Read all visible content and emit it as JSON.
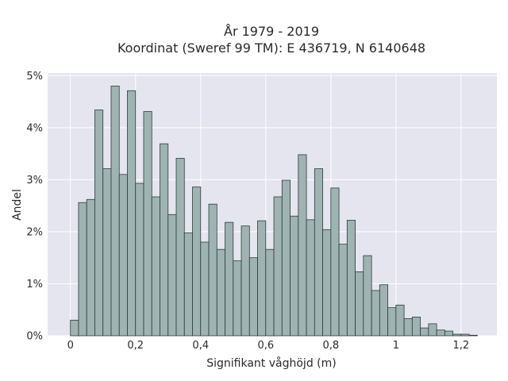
{
  "chart_data": {
    "type": "bar",
    "title_line1": "År 1979 - 2019",
    "title_line2": "Koordinat (Sweref 99 TM): E 436719, N 6140648",
    "xlabel": "Signifikant våghöjd (m)",
    "ylabel": "Andel",
    "x_ticks": [
      {
        "value": 0,
        "label": "0"
      },
      {
        "value": 0.2,
        "label": "0,2"
      },
      {
        "value": 0.4,
        "label": "0,4"
      },
      {
        "value": 0.6,
        "label": "0,6"
      },
      {
        "value": 0.8,
        "label": "0,8"
      },
      {
        "value": 1.0,
        "label": "1"
      },
      {
        "value": 1.2,
        "label": "1,2"
      }
    ],
    "y_ticks": [
      {
        "value": 0,
        "label": "0%"
      },
      {
        "value": 1,
        "label": "1%"
      },
      {
        "value": 2,
        "label": "2%"
      },
      {
        "value": 3,
        "label": "3%"
      },
      {
        "value": 4,
        "label": "4%"
      },
      {
        "value": 5,
        "label": "5%"
      }
    ],
    "xlim": [
      -0.07,
      1.31
    ],
    "ylim": [
      0,
      5.05
    ],
    "bin_width": 0.025,
    "bin_start": 0.0,
    "values": [
      0.3,
      2.56,
      2.62,
      4.34,
      3.21,
      4.8,
      3.1,
      4.71,
      2.93,
      4.31,
      2.67,
      3.69,
      2.33,
      3.41,
      1.98,
      2.86,
      1.8,
      2.53,
      1.66,
      2.18,
      1.44,
      2.11,
      1.5,
      2.21,
      1.66,
      2.67,
      2.99,
      2.3,
      3.48,
      2.23,
      3.21,
      2.04,
      2.84,
      1.76,
      2.22,
      1.23,
      1.54,
      0.87,
      0.98,
      0.54,
      0.59,
      0.33,
      0.36,
      0.15,
      0.23,
      0.11,
      0.09,
      0.03,
      0.03,
      0.01
    ],
    "grid": true,
    "colors": {
      "plot_background": "#e5e5ef",
      "bar_fill": "#9fb3b3",
      "bar_edge": "#2e3a3a",
      "grid": "#ffffff"
    }
  }
}
